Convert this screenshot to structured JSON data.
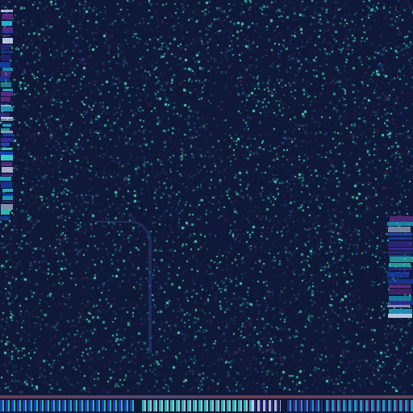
{
  "screen": {
    "title": "",
    "background_color": "#0f1838",
    "noise_palette": [
      "#0d1430",
      "#13285a",
      "#1a5060",
      "#1d6e6a",
      "#2aa58a",
      "#3fd1a9",
      "#243a7a",
      "#3a1c3c",
      "#15365a",
      "#0e2244"
    ],
    "edge_strip_palette": [
      "#1a46c8",
      "#2ad1c4",
      "#c8d8f0",
      "#3a2a9a",
      "#18b4d8",
      "#6a2a8a"
    ]
  },
  "left_strip": {
    "label": ""
  },
  "right_strip": {
    "label": ""
  },
  "bottom_bar": {
    "label": ""
  }
}
